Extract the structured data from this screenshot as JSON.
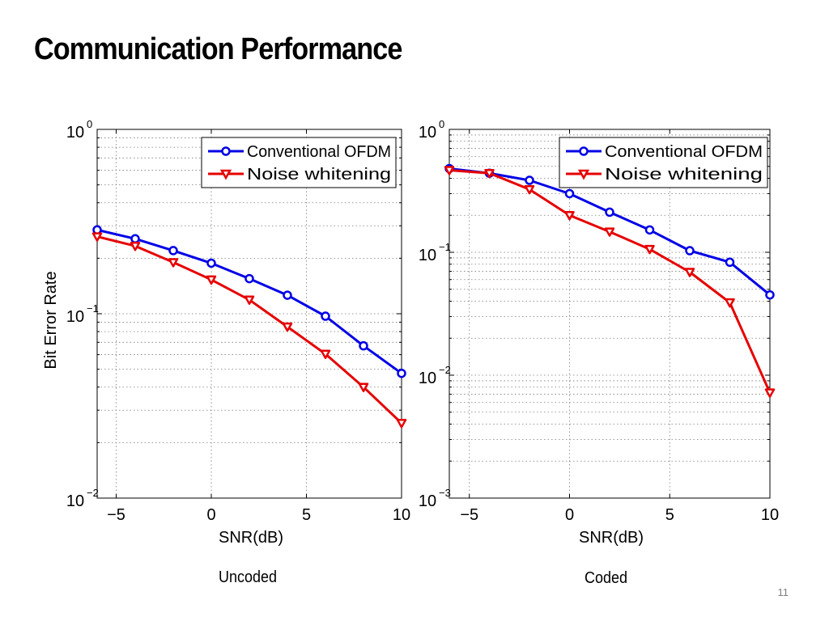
{
  "slide": {
    "title": "Communication Performance",
    "page_number": "11"
  },
  "chart_data": [
    {
      "type": "line",
      "caption": "Uncoded",
      "xlabel": "SNR(dB)",
      "ylabel": "Bit Error Rate",
      "xlim": [
        -6,
        10
      ],
      "ylim": [
        0.01,
        1
      ],
      "yscale": "log",
      "grid": true,
      "legend_position": "top-right",
      "x_ticks": [
        {
          "value": -5,
          "label": "−5"
        },
        {
          "value": 0,
          "label": "0"
        },
        {
          "value": 5,
          "label": "5"
        },
        {
          "value": 10,
          "label": "10"
        }
      ],
      "y_ticks": [
        {
          "value": 1,
          "base": "10",
          "exp": "0"
        },
        {
          "value": 0.1,
          "base": "10",
          "exp": "−1"
        },
        {
          "value": 0.01,
          "base": "10",
          "exp": "−2"
        }
      ],
      "series": [
        {
          "name": "Conventional OFDM",
          "color": "#0000e6",
          "marker": "circle",
          "x": [
            -6,
            -4,
            -2,
            0,
            2,
            4,
            6,
            8,
            10
          ],
          "y": [
            0.285,
            0.255,
            0.22,
            0.188,
            0.155,
            0.126,
            0.097,
            0.067,
            0.0475
          ]
        },
        {
          "name": "Noise whitening",
          "color": "#e60000",
          "marker": "triangle-down",
          "x": [
            -6,
            -4,
            -2,
            0,
            2,
            4,
            6,
            8,
            10
          ],
          "y": [
            0.262,
            0.233,
            0.19,
            0.153,
            0.119,
            0.085,
            0.0605,
            0.04,
            0.0255
          ]
        }
      ]
    },
    {
      "type": "line",
      "caption": "Coded",
      "xlabel": "SNR(dB)",
      "ylabel": "",
      "xlim": [
        -6,
        10
      ],
      "ylim": [
        0.001,
        1
      ],
      "yscale": "log",
      "grid": true,
      "legend_position": "top-right",
      "x_ticks": [
        {
          "value": -5,
          "label": "−5"
        },
        {
          "value": 0,
          "label": "0"
        },
        {
          "value": 5,
          "label": "5"
        },
        {
          "value": 10,
          "label": "10"
        }
      ],
      "y_ticks": [
        {
          "value": 1,
          "base": "10",
          "exp": "0"
        },
        {
          "value": 0.1,
          "base": "10",
          "exp": "−1"
        },
        {
          "value": 0.01,
          "base": "10",
          "exp": "−2"
        },
        {
          "value": 0.001,
          "base": "10",
          "exp": "−3"
        }
      ],
      "series": [
        {
          "name": "Conventional OFDM",
          "color": "#0000e6",
          "marker": "circle",
          "x": [
            -6,
            -4,
            -2,
            0,
            2,
            4,
            6,
            8,
            10
          ],
          "y": [
            0.48,
            0.44,
            0.385,
            0.3,
            0.212,
            0.152,
            0.103,
            0.083,
            0.045
          ]
        },
        {
          "name": "Noise whitening",
          "color": "#e60000",
          "marker": "triangle-down",
          "x": [
            -6,
            -4,
            -2,
            0,
            2,
            4,
            6,
            8,
            10
          ],
          "y": [
            0.465,
            0.44,
            0.325,
            0.2,
            0.147,
            0.106,
            0.069,
            0.039,
            0.0072
          ]
        }
      ]
    }
  ]
}
